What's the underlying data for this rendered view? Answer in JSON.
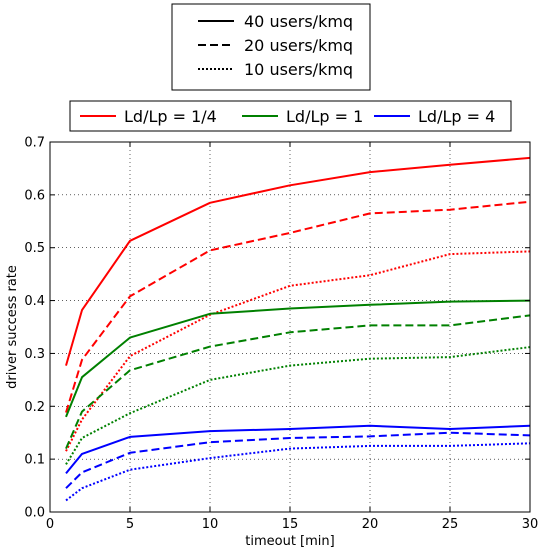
{
  "chart_data": {
    "type": "line",
    "xlabel": "timeout [min]",
    "ylabel": "driver success rate",
    "xlim": [
      0,
      30
    ],
    "ylim": [
      0.0,
      0.7
    ],
    "xticks": [
      0,
      5,
      10,
      15,
      20,
      25,
      30
    ],
    "yticks": [
      0.0,
      0.1,
      0.2,
      0.3,
      0.4,
      0.5,
      0.6,
      0.7
    ],
    "x_tick_labels": [
      "0",
      "5",
      "10",
      "15",
      "20",
      "25",
      "30"
    ],
    "y_tick_labels": [
      "0.0",
      "0.1",
      "0.2",
      "0.3",
      "0.4",
      "0.5",
      "0.6",
      "0.7"
    ],
    "grid": true,
    "x": [
      1,
      2,
      5,
      10,
      15,
      20,
      25,
      30
    ],
    "legend_styles": [
      {
        "label": "40 users/kmq",
        "dash": "solid"
      },
      {
        "label": "20 users/kmq",
        "dash": "dashed"
      },
      {
        "label": "10 users/kmq",
        "dash": "dotted"
      }
    ],
    "legend_ratios": [
      {
        "label": "Ld/Lp = 1/4",
        "color": "#ff0000"
      },
      {
        "label": "Ld/Lp = 1",
        "color": "#008000"
      },
      {
        "label": "Ld/Lp = 4",
        "color": "#0000ff"
      }
    ],
    "series": [
      {
        "ratio": "Ld/Lp = 1/4",
        "density": "40 users/kmq",
        "color": "#ff0000",
        "dash": "solid",
        "values": [
          0.277,
          0.382,
          0.513,
          0.585,
          0.618,
          0.643,
          0.657,
          0.67
        ]
      },
      {
        "ratio": "Ld/Lp = 1/4",
        "density": "20 users/kmq",
        "color": "#ff0000",
        "dash": "dashed",
        "values": [
          0.188,
          0.288,
          0.408,
          0.495,
          0.528,
          0.565,
          0.572,
          0.587
        ]
      },
      {
        "ratio": "Ld/Lp = 1/4",
        "density": "10 users/kmq",
        "color": "#ff0000",
        "dash": "dotted",
        "values": [
          0.115,
          0.175,
          0.295,
          0.373,
          0.428,
          0.448,
          0.488,
          0.493
        ]
      },
      {
        "ratio": "Ld/Lp = 1",
        "density": "40 users/kmq",
        "color": "#008000",
        "dash": "solid",
        "values": [
          0.18,
          0.255,
          0.33,
          0.375,
          0.385,
          0.392,
          0.398,
          0.4
        ]
      },
      {
        "ratio": "Ld/Lp = 1",
        "density": "20 users/kmq",
        "color": "#008000",
        "dash": "dashed",
        "values": [
          0.12,
          0.19,
          0.268,
          0.313,
          0.34,
          0.353,
          0.353,
          0.372
        ]
      },
      {
        "ratio": "Ld/Lp = 1",
        "density": "10 users/kmq",
        "color": "#008000",
        "dash": "dotted",
        "values": [
          0.09,
          0.14,
          0.187,
          0.25,
          0.277,
          0.29,
          0.293,
          0.312
        ]
      },
      {
        "ratio": "Ld/Lp = 4",
        "density": "40 users/kmq",
        "color": "#0000ff",
        "dash": "solid",
        "values": [
          0.073,
          0.11,
          0.142,
          0.153,
          0.157,
          0.163,
          0.157,
          0.163
        ]
      },
      {
        "ratio": "Ld/Lp = 4",
        "density": "20 users/kmq",
        "color": "#0000ff",
        "dash": "dashed",
        "values": [
          0.045,
          0.075,
          0.112,
          0.132,
          0.14,
          0.143,
          0.15,
          0.145
        ]
      },
      {
        "ratio": "Ld/Lp = 4",
        "density": "10 users/kmq",
        "color": "#0000ff",
        "dash": "dotted",
        "values": [
          0.022,
          0.045,
          0.08,
          0.102,
          0.12,
          0.125,
          0.125,
          0.13
        ]
      }
    ]
  }
}
